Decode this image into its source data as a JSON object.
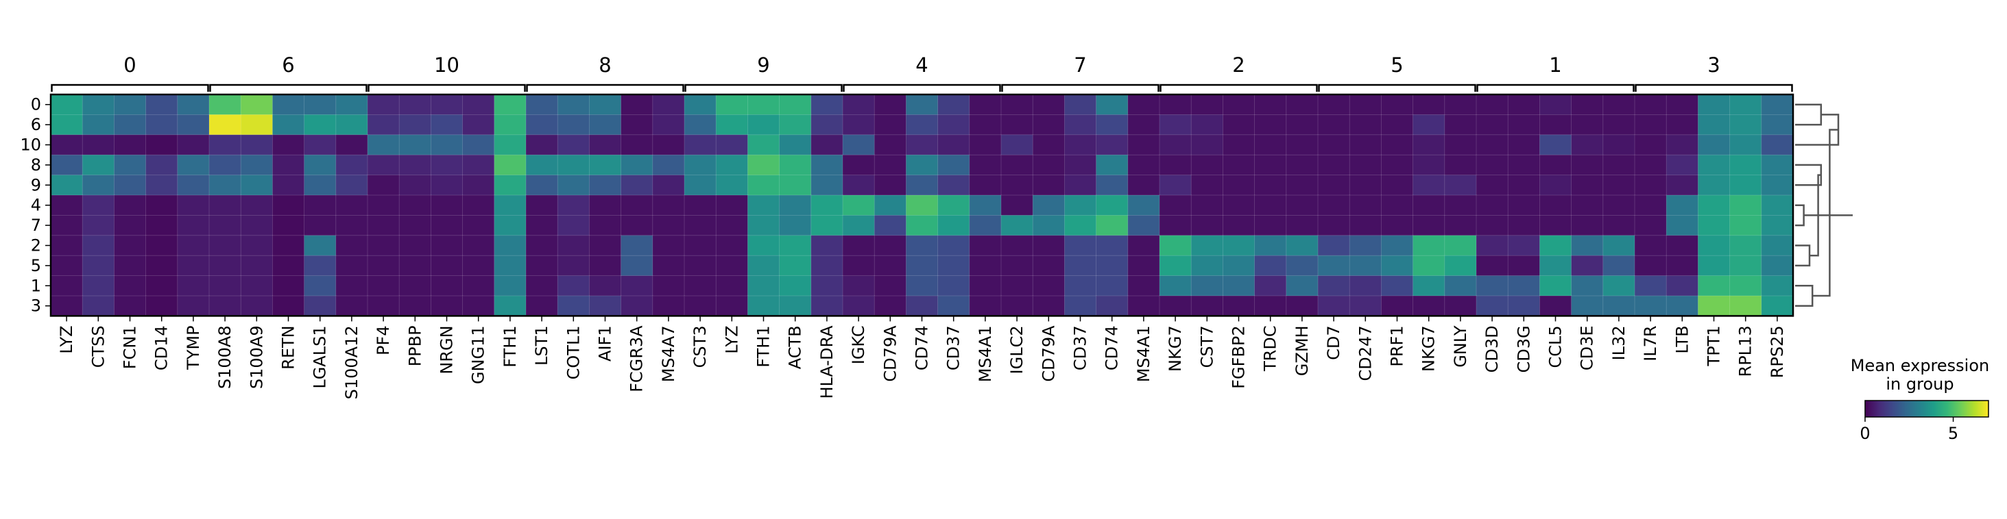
{
  "chart_data": {
    "type": "heatmap",
    "title": "",
    "rows": [
      "0",
      "6",
      "10",
      "8",
      "9",
      "4",
      "7",
      "2",
      "5",
      "1",
      "3"
    ],
    "groups": [
      {
        "label": "0",
        "genes": [
          "LYZ",
          "CTSS",
          "FCN1",
          "CD14",
          "TYMP"
        ]
      },
      {
        "label": "6",
        "genes": [
          "S100A8",
          "S100A9",
          "RETN",
          "LGALS1",
          "S100A12"
        ]
      },
      {
        "label": "10",
        "genes": [
          "PF4",
          "PPBP",
          "NRGN",
          "GNG11",
          "FTH1"
        ]
      },
      {
        "label": "8",
        "genes": [
          "LST1",
          "COTL1",
          "AIF1",
          "FCGR3A",
          "MS4A7"
        ]
      },
      {
        "label": "9",
        "genes": [
          "CST3",
          "LYZ",
          "FTH1",
          "ACTB",
          "HLA-DRA"
        ]
      },
      {
        "label": "4",
        "genes": [
          "IGKC",
          "CD79A",
          "CD74",
          "CD37",
          "MS4A1"
        ]
      },
      {
        "label": "7",
        "genes": [
          "IGLC2",
          "CD79A",
          "CD37",
          "CD74",
          "MS4A1"
        ]
      },
      {
        "label": "2",
        "genes": [
          "NKG7",
          "CST7",
          "FGFBP2",
          "TRDC",
          "GZMH"
        ]
      },
      {
        "label": "5",
        "genes": [
          "CD7",
          "CD247",
          "PRF1",
          "NKG7",
          "GNLY"
        ]
      },
      {
        "label": "1",
        "genes": [
          "CD3D",
          "CD3G",
          "CCL5",
          "CD3E",
          "IL32"
        ]
      },
      {
        "label": "3",
        "genes": [
          "IL7R",
          "LTB",
          "TPT1",
          "RPL13",
          "RPS25"
        ]
      }
    ],
    "values": [
      [
        4.0,
        3.0,
        2.6,
        1.7,
        2.5,
        5.0,
        5.5,
        2.5,
        2.5,
        2.8,
        0.8,
        0.8,
        0.8,
        0.7,
        4.7,
        2.0,
        2.5,
        2.8,
        0.3,
        0.6,
        3.0,
        4.5,
        4.5,
        4.5,
        1.5,
        0.6,
        0.3,
        2.5,
        1.3,
        0.3,
        0.3,
        0.3,
        1.3,
        3.0,
        0.3,
        0.3,
        0.3,
        0.3,
        0.3,
        0.3,
        0.3,
        0.3,
        0.3,
        0.3,
        0.3,
        0.3,
        0.3,
        0.5,
        0.3,
        0.3,
        0.3,
        0.3,
        3.2,
        3.5,
        2.5
      ],
      [
        4.0,
        2.8,
        2.2,
        1.7,
        2.0,
        6.8,
        6.6,
        3.0,
        3.8,
        3.6,
        1.0,
        1.2,
        1.5,
        0.7,
        4.5,
        1.8,
        2.0,
        2.2,
        0.3,
        0.6,
        2.3,
        4.0,
        3.8,
        4.2,
        1.2,
        0.6,
        0.3,
        1.5,
        1.0,
        0.3,
        0.3,
        0.3,
        1.0,
        1.5,
        0.3,
        0.8,
        0.6,
        0.3,
        0.3,
        0.3,
        0.3,
        0.3,
        0.3,
        0.9,
        0.3,
        0.3,
        0.3,
        0.3,
        0.3,
        0.3,
        0.3,
        0.3,
        3.2,
        3.5,
        2.5
      ],
      [
        0.4,
        0.4,
        0.3,
        0.2,
        0.4,
        1.0,
        1.0,
        0.3,
        0.8,
        0.3,
        2.5,
        2.5,
        2.3,
        2.0,
        4.2,
        0.5,
        1.0,
        0.5,
        0.3,
        0.3,
        1.0,
        1.0,
        4.2,
        3.2,
        0.5,
        2.0,
        0.3,
        0.8,
        0.6,
        0.3,
        1.0,
        0.3,
        0.6,
        0.8,
        0.3,
        0.5,
        0.5,
        0.3,
        0.3,
        0.3,
        0.3,
        0.3,
        0.3,
        0.5,
        0.3,
        0.3,
        0.3,
        1.5,
        0.5,
        0.4,
        0.3,
        0.5,
        2.8,
        3.3,
        1.8
      ],
      [
        2.0,
        3.5,
        2.3,
        1.1,
        2.5,
        1.8,
        2.2,
        0.5,
        2.6,
        1.0,
        0.7,
        0.7,
        0.8,
        0.7,
        5.0,
        3.3,
        3.4,
        3.5,
        2.8,
        2.0,
        3.0,
        3.5,
        5.0,
        4.5,
        2.5,
        0.3,
        0.3,
        3.0,
        2.2,
        0.3,
        0.3,
        0.3,
        0.5,
        3.0,
        0.3,
        0.3,
        0.3,
        0.3,
        0.3,
        0.3,
        0.3,
        0.3,
        0.3,
        0.5,
        0.3,
        0.3,
        0.3,
        0.3,
        0.3,
        0.3,
        0.3,
        0.8,
        3.5,
        3.8,
        3.0
      ],
      [
        3.5,
        2.5,
        2.0,
        1.2,
        2.0,
        2.5,
        2.8,
        0.5,
        2.2,
        1.2,
        0.3,
        0.5,
        0.6,
        0.5,
        4.2,
        2.0,
        2.5,
        2.0,
        1.2,
        0.6,
        3.0,
        3.5,
        4.5,
        4.5,
        2.5,
        0.6,
        0.3,
        2.0,
        1.2,
        0.3,
        0.3,
        0.3,
        0.6,
        2.0,
        0.3,
        0.8,
        0.3,
        0.3,
        0.3,
        0.3,
        0.3,
        0.3,
        0.3,
        0.8,
        0.8,
        0.3,
        0.3,
        0.5,
        0.3,
        0.3,
        0.3,
        0.5,
        3.5,
        3.8,
        3.0
      ],
      [
        0.3,
        0.8,
        0.3,
        0.2,
        0.5,
        0.5,
        0.5,
        0.2,
        0.3,
        0.3,
        0.3,
        0.3,
        0.3,
        0.3,
        3.5,
        0.3,
        0.8,
        0.3,
        0.3,
        0.3,
        0.3,
        0.3,
        3.5,
        3.0,
        4.0,
        4.5,
        3.2,
        5.0,
        4.2,
        2.5,
        0.3,
        2.5,
        3.5,
        4.0,
        2.5,
        0.3,
        0.3,
        0.3,
        0.3,
        0.3,
        0.3,
        0.3,
        0.3,
        0.3,
        0.3,
        0.3,
        0.3,
        0.3,
        0.3,
        0.3,
        0.3,
        2.8,
        4.0,
        4.6,
        3.5
      ],
      [
        0.3,
        0.8,
        0.3,
        0.2,
        0.5,
        0.5,
        0.5,
        0.2,
        0.3,
        0.3,
        0.3,
        0.3,
        0.3,
        0.3,
        3.5,
        0.3,
        0.8,
        0.3,
        0.3,
        0.3,
        0.3,
        0.3,
        3.5,
        3.0,
        4.0,
        3.5,
        1.5,
        4.5,
        3.8,
        2.0,
        3.5,
        3.0,
        4.0,
        4.8,
        2.0,
        0.3,
        0.3,
        0.3,
        0.3,
        0.3,
        0.3,
        0.3,
        0.3,
        0.3,
        0.3,
        0.3,
        0.3,
        0.3,
        0.3,
        0.3,
        0.3,
        2.8,
        4.0,
        4.6,
        3.5
      ],
      [
        0.3,
        1.0,
        0.3,
        0.2,
        0.5,
        0.5,
        0.5,
        0.2,
        2.8,
        0.3,
        0.3,
        0.3,
        0.3,
        0.3,
        3.0,
        0.3,
        0.5,
        0.3,
        2.0,
        0.3,
        0.3,
        0.3,
        3.8,
        4.0,
        1.0,
        0.3,
        0.3,
        1.8,
        1.6,
        0.3,
        0.3,
        0.3,
        1.5,
        1.5,
        0.3,
        4.5,
        3.5,
        3.5,
        2.8,
        3.2,
        1.5,
        2.0,
        2.5,
        4.5,
        4.5,
        0.7,
        0.8,
        4.0,
        2.5,
        3.2,
        0.3,
        0.3,
        3.8,
        4.2,
        3.2
      ],
      [
        0.3,
        1.0,
        0.3,
        0.2,
        0.5,
        0.5,
        0.5,
        0.2,
        1.5,
        0.3,
        0.3,
        0.3,
        0.3,
        0.3,
        3.0,
        0.3,
        0.5,
        0.3,
        2.0,
        0.3,
        0.3,
        0.3,
        3.5,
        4.0,
        1.0,
        0.3,
        0.3,
        1.8,
        1.6,
        0.3,
        0.3,
        0.3,
        1.5,
        1.5,
        0.3,
        4.0,
        3.2,
        3.0,
        1.5,
        2.0,
        2.5,
        2.5,
        3.0,
        4.5,
        4.0,
        0.3,
        0.3,
        3.5,
        0.8,
        2.0,
        0.3,
        0.3,
        3.8,
        4.2,
        3.0
      ],
      [
        0.3,
        1.0,
        0.3,
        0.2,
        0.5,
        0.5,
        0.5,
        0.2,
        1.8,
        0.3,
        0.3,
        0.3,
        0.3,
        0.3,
        3.0,
        0.3,
        1.0,
        0.5,
        0.6,
        0.3,
        0.3,
        0.3,
        3.5,
        3.8,
        1.0,
        0.5,
        0.3,
        1.8,
        1.6,
        0.3,
        0.3,
        0.3,
        1.5,
        1.5,
        0.3,
        3.0,
        2.5,
        2.5,
        0.8,
        2.5,
        1.2,
        1.0,
        1.5,
        3.5,
        2.5,
        2.0,
        2.0,
        4.0,
        2.5,
        3.5,
        1.5,
        1.0,
        4.6,
        4.6,
        3.5
      ],
      [
        0.3,
        1.0,
        0.3,
        0.2,
        0.5,
        0.5,
        0.5,
        0.2,
        1.2,
        0.3,
        0.3,
        0.3,
        0.3,
        0.3,
        3.5,
        0.3,
        1.5,
        1.2,
        0.6,
        0.3,
        0.3,
        0.3,
        3.5,
        3.5,
        1.0,
        0.6,
        0.3,
        1.2,
        1.8,
        0.3,
        0.3,
        0.3,
        1.5,
        1.2,
        0.3,
        0.3,
        0.3,
        0.3,
        0.3,
        0.3,
        0.8,
        0.8,
        0.3,
        0.3,
        0.3,
        1.5,
        1.5,
        0.3,
        2.5,
        2.5,
        2.5,
        2.5,
        5.5,
        5.5,
        3.8
      ]
    ],
    "colorbar": {
      "label": "Mean expression\nin group",
      "label_lines": [
        "Mean expression",
        "in group"
      ],
      "min": 0,
      "max": 7,
      "ticks": [
        0,
        5
      ],
      "colormap": "viridis"
    },
    "dendrogram": {
      "linkage": [
        {
          "a": 0,
          "b": 1,
          "height": 0.45
        },
        {
          "a": 3,
          "b": 4,
          "height": 0.45
        },
        {
          "a": 5,
          "b": 6,
          "height": 0.15
        },
        {
          "a": 7,
          "b": 8,
          "height": 0.25
        },
        {
          "a": 9,
          "b": 10,
          "height": 0.3
        },
        {
          "n": 11,
          "m": 2,
          "height": 0.75
        },
        {
          "n": 12,
          "m": 14,
          "height": 0.4
        },
        {
          "n": 16,
          "m": 15,
          "height": 0.6
        },
        {
          "n": 17,
          "m": 13,
          "height": 1.0
        }
      ]
    }
  }
}
